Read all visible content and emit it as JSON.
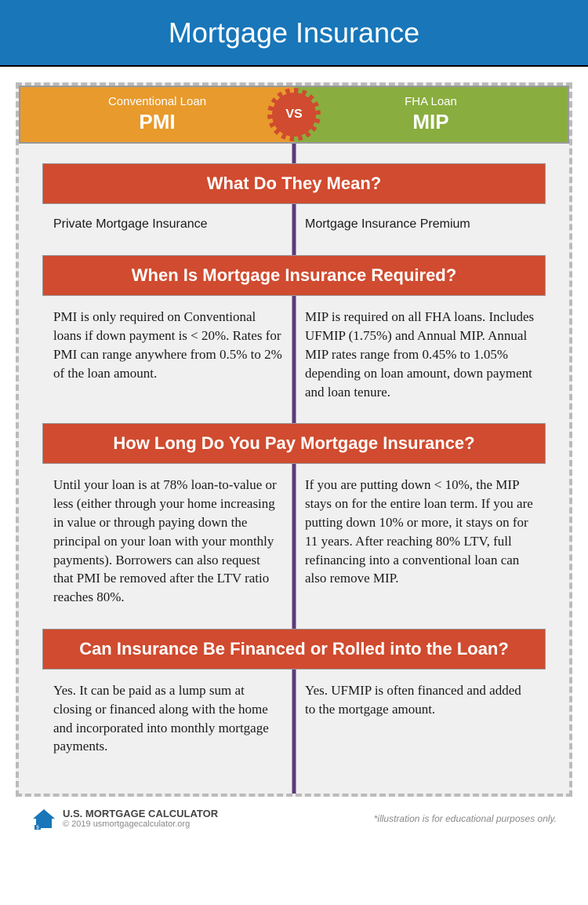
{
  "colors": {
    "header_bg": "#1876b9",
    "left_bg": "#e89a2c",
    "right_bg": "#8aad3f",
    "section_bg": "#d04b2f",
    "divider": "#5d3a7a",
    "dashed_border": "#bbbbbb",
    "container_bg": "#f0f0f0"
  },
  "header": {
    "title": "Mortgage Insurance"
  },
  "compare": {
    "left": {
      "type": "Conventional Loan",
      "abbr": "PMI"
    },
    "right": {
      "type": "FHA Loan",
      "abbr": "MIP"
    },
    "vs": "VS"
  },
  "sections": [
    {
      "title": "What Do They Mean?",
      "left": "Private Mortgage Insurance",
      "right": "Mortgage Insurance Premium",
      "meaning": true
    },
    {
      "title": "When Is Mortgage Insurance Required?",
      "left": "PMI is only required on Conventional loans if down payment is < 20%. Rates for PMI can range anywhere from 0.5% to 2% of the loan amount.",
      "right": "MIP is required on all FHA loans. Includes UFMIP (1.75%) and Annual MIP. Annual MIP rates range from 0.45% to 1.05% depending on loan amount, down payment and loan tenure."
    },
    {
      "title": "How Long Do You Pay Mortgage Insurance?",
      "left": "Until your loan is at 78% loan-to-value or less (either through your home increasing in value or through paying down the principal on your loan with your monthly payments). Borrowers can also request that PMI be removed after the LTV ratio reaches 80%.",
      "right": "If you are putting down < 10%, the MIP stays on for the entire loan term. If you are putting down 10% or more, it stays on for 11 years. After reaching 80% LTV, full refinancing into a conventional loan can also remove MIP."
    },
    {
      "title": "Can Insurance Be Financed or Rolled into the Loan?",
      "left": "Yes. It can be paid as a lump sum at closing or financed along with the home and incorporated into monthly mortgage payments.",
      "right": "Yes. UFMIP is often financed and added to the mortgage amount."
    }
  ],
  "footer": {
    "brand": "U.S. MORTGAGE CALCULATOR",
    "copy": "© 2019 usmortgagecalculator.org",
    "disclaimer": "*illustration is for educational purposes only."
  }
}
